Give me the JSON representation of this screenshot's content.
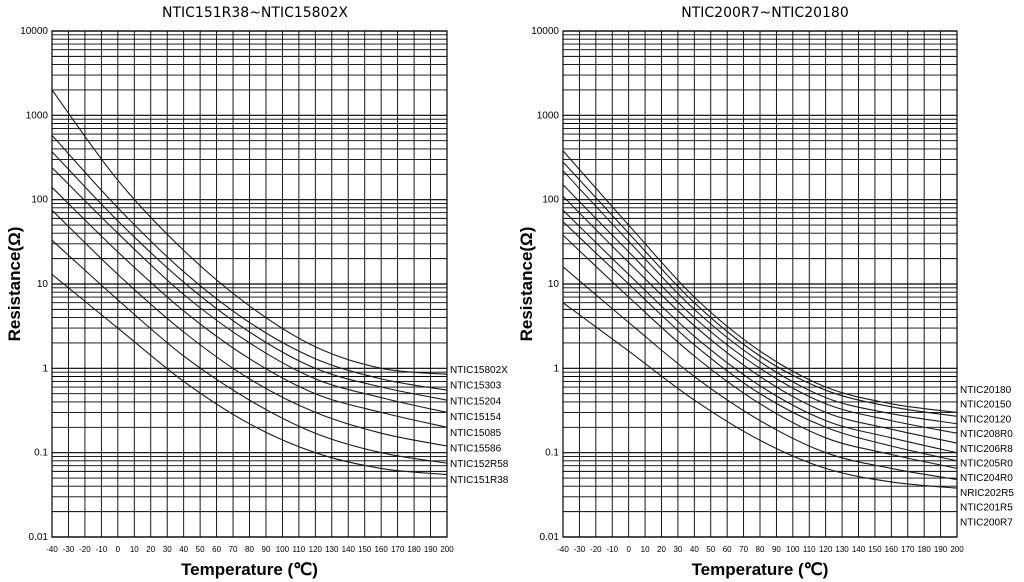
{
  "chart_data": [
    {
      "type": "line",
      "title": "NTIC151R38~NTIC15802X",
      "xlabel": "Temperature (℃)",
      "ylabel": "Resistance(Ω)",
      "yscale": "log",
      "ylim": [
        0.01,
        10000
      ],
      "xlim": [
        -40,
        200
      ],
      "yticks": [
        "10000",
        "1000",
        "100",
        "10",
        "1",
        "0.1",
        "0.01"
      ],
      "xticks": [
        "-40",
        "-30",
        "-20",
        "-10",
        "0",
        "10",
        "20",
        "30",
        "40",
        "50",
        "60",
        "70",
        "80",
        "90",
        "100",
        "110",
        "120",
        "130",
        "140",
        "150",
        "160",
        "170",
        "180",
        "190",
        "200"
      ],
      "grid": true,
      "x": [
        -40,
        0,
        40,
        80,
        120,
        160,
        200
      ],
      "series": [
        {
          "name": "NTIC15802X",
          "values": [
            2000,
            170,
            25,
            5.5,
            1.8,
            1.0,
            0.85
          ]
        },
        {
          "name": "NTIC15303",
          "values": [
            580,
            80,
            14,
            3.5,
            1.3,
            0.75,
            0.55
          ]
        },
        {
          "name": "NTIC15204",
          "values": [
            370,
            56,
            10.5,
            2.7,
            1.0,
            0.6,
            0.42
          ]
        },
        {
          "name": "NTIC15154",
          "values": [
            240,
            40,
            7.5,
            2.0,
            0.75,
            0.45,
            0.3
          ]
        },
        {
          "name": "NTIC15085",
          "values": [
            140,
            24,
            4.8,
            1.3,
            0.5,
            0.3,
            0.2
          ]
        },
        {
          "name": "NTIC15586",
          "values": [
            75,
            13,
            2.7,
            0.75,
            0.3,
            0.17,
            0.12
          ]
        },
        {
          "name": "NTIC152R58",
          "values": [
            33,
            6.5,
            1.4,
            0.42,
            0.17,
            0.1,
            0.075
          ]
        },
        {
          "name": "NTIC151R38",
          "values": [
            13,
            3.0,
            0.7,
            0.22,
            0.1,
            0.065,
            0.055
          ]
        }
      ]
    },
    {
      "type": "line",
      "title": "NTIC200R7~NTIC20180",
      "xlabel": "Temperature (℃)",
      "ylabel": "Resistance(Ω)",
      "yscale": "log",
      "ylim": [
        0.01,
        10000
      ],
      "xlim": [
        -40,
        200
      ],
      "yticks": [
        "10000",
        "1000",
        "100",
        "10",
        "1",
        "0.1",
        "0.01"
      ],
      "xticks": [
        "-40",
        "-30",
        "-20",
        "-10",
        "0",
        "10",
        "20",
        "30",
        "40",
        "50",
        "60",
        "70",
        "80",
        "90",
        "100",
        "110",
        "120",
        "130",
        "140",
        "150",
        "160",
        "170",
        "180",
        "190",
        "200"
      ],
      "grid": true,
      "x": [
        -40,
        0,
        40,
        80,
        120,
        160,
        200
      ],
      "series": [
        {
          "name": "NTIC20180",
          "values": [
            380,
            50,
            7.0,
            1.6,
            0.6,
            0.38,
            0.3
          ]
        },
        {
          "name": "NTIC20150",
          "values": [
            280,
            40,
            6.0,
            1.4,
            0.55,
            0.35,
            0.27
          ]
        },
        {
          "name": "NTIC20120",
          "values": [
            220,
            32,
            5.0,
            1.2,
            0.45,
            0.29,
            0.22
          ]
        },
        {
          "name": "NTIC208R0",
          "values": [
            150,
            24,
            4.0,
            1.0,
            0.38,
            0.24,
            0.17
          ]
        },
        {
          "name": "NTIC206R8",
          "values": [
            110,
            18,
            3.2,
            0.8,
            0.3,
            0.19,
            0.13
          ]
        },
        {
          "name": "NTIC205R0",
          "values": [
            75,
            13,
            2.4,
            0.62,
            0.24,
            0.15,
            0.1
          ]
        },
        {
          "name": "NTIC204R0",
          "values": [
            55,
            10,
            1.9,
            0.5,
            0.2,
            0.12,
            0.08
          ]
        },
        {
          "name": "NRIC202R5",
          "values": [
            38,
            7.0,
            1.4,
            0.38,
            0.15,
            0.095,
            0.065
          ]
        },
        {
          "name": "NTIC201R5",
          "values": [
            16,
            3.5,
            0.8,
            0.24,
            0.1,
            0.065,
            0.048
          ]
        },
        {
          "name": "NTIC200R7",
          "values": [
            6.0,
            1.6,
            0.42,
            0.14,
            0.065,
            0.045,
            0.038
          ]
        }
      ]
    }
  ]
}
